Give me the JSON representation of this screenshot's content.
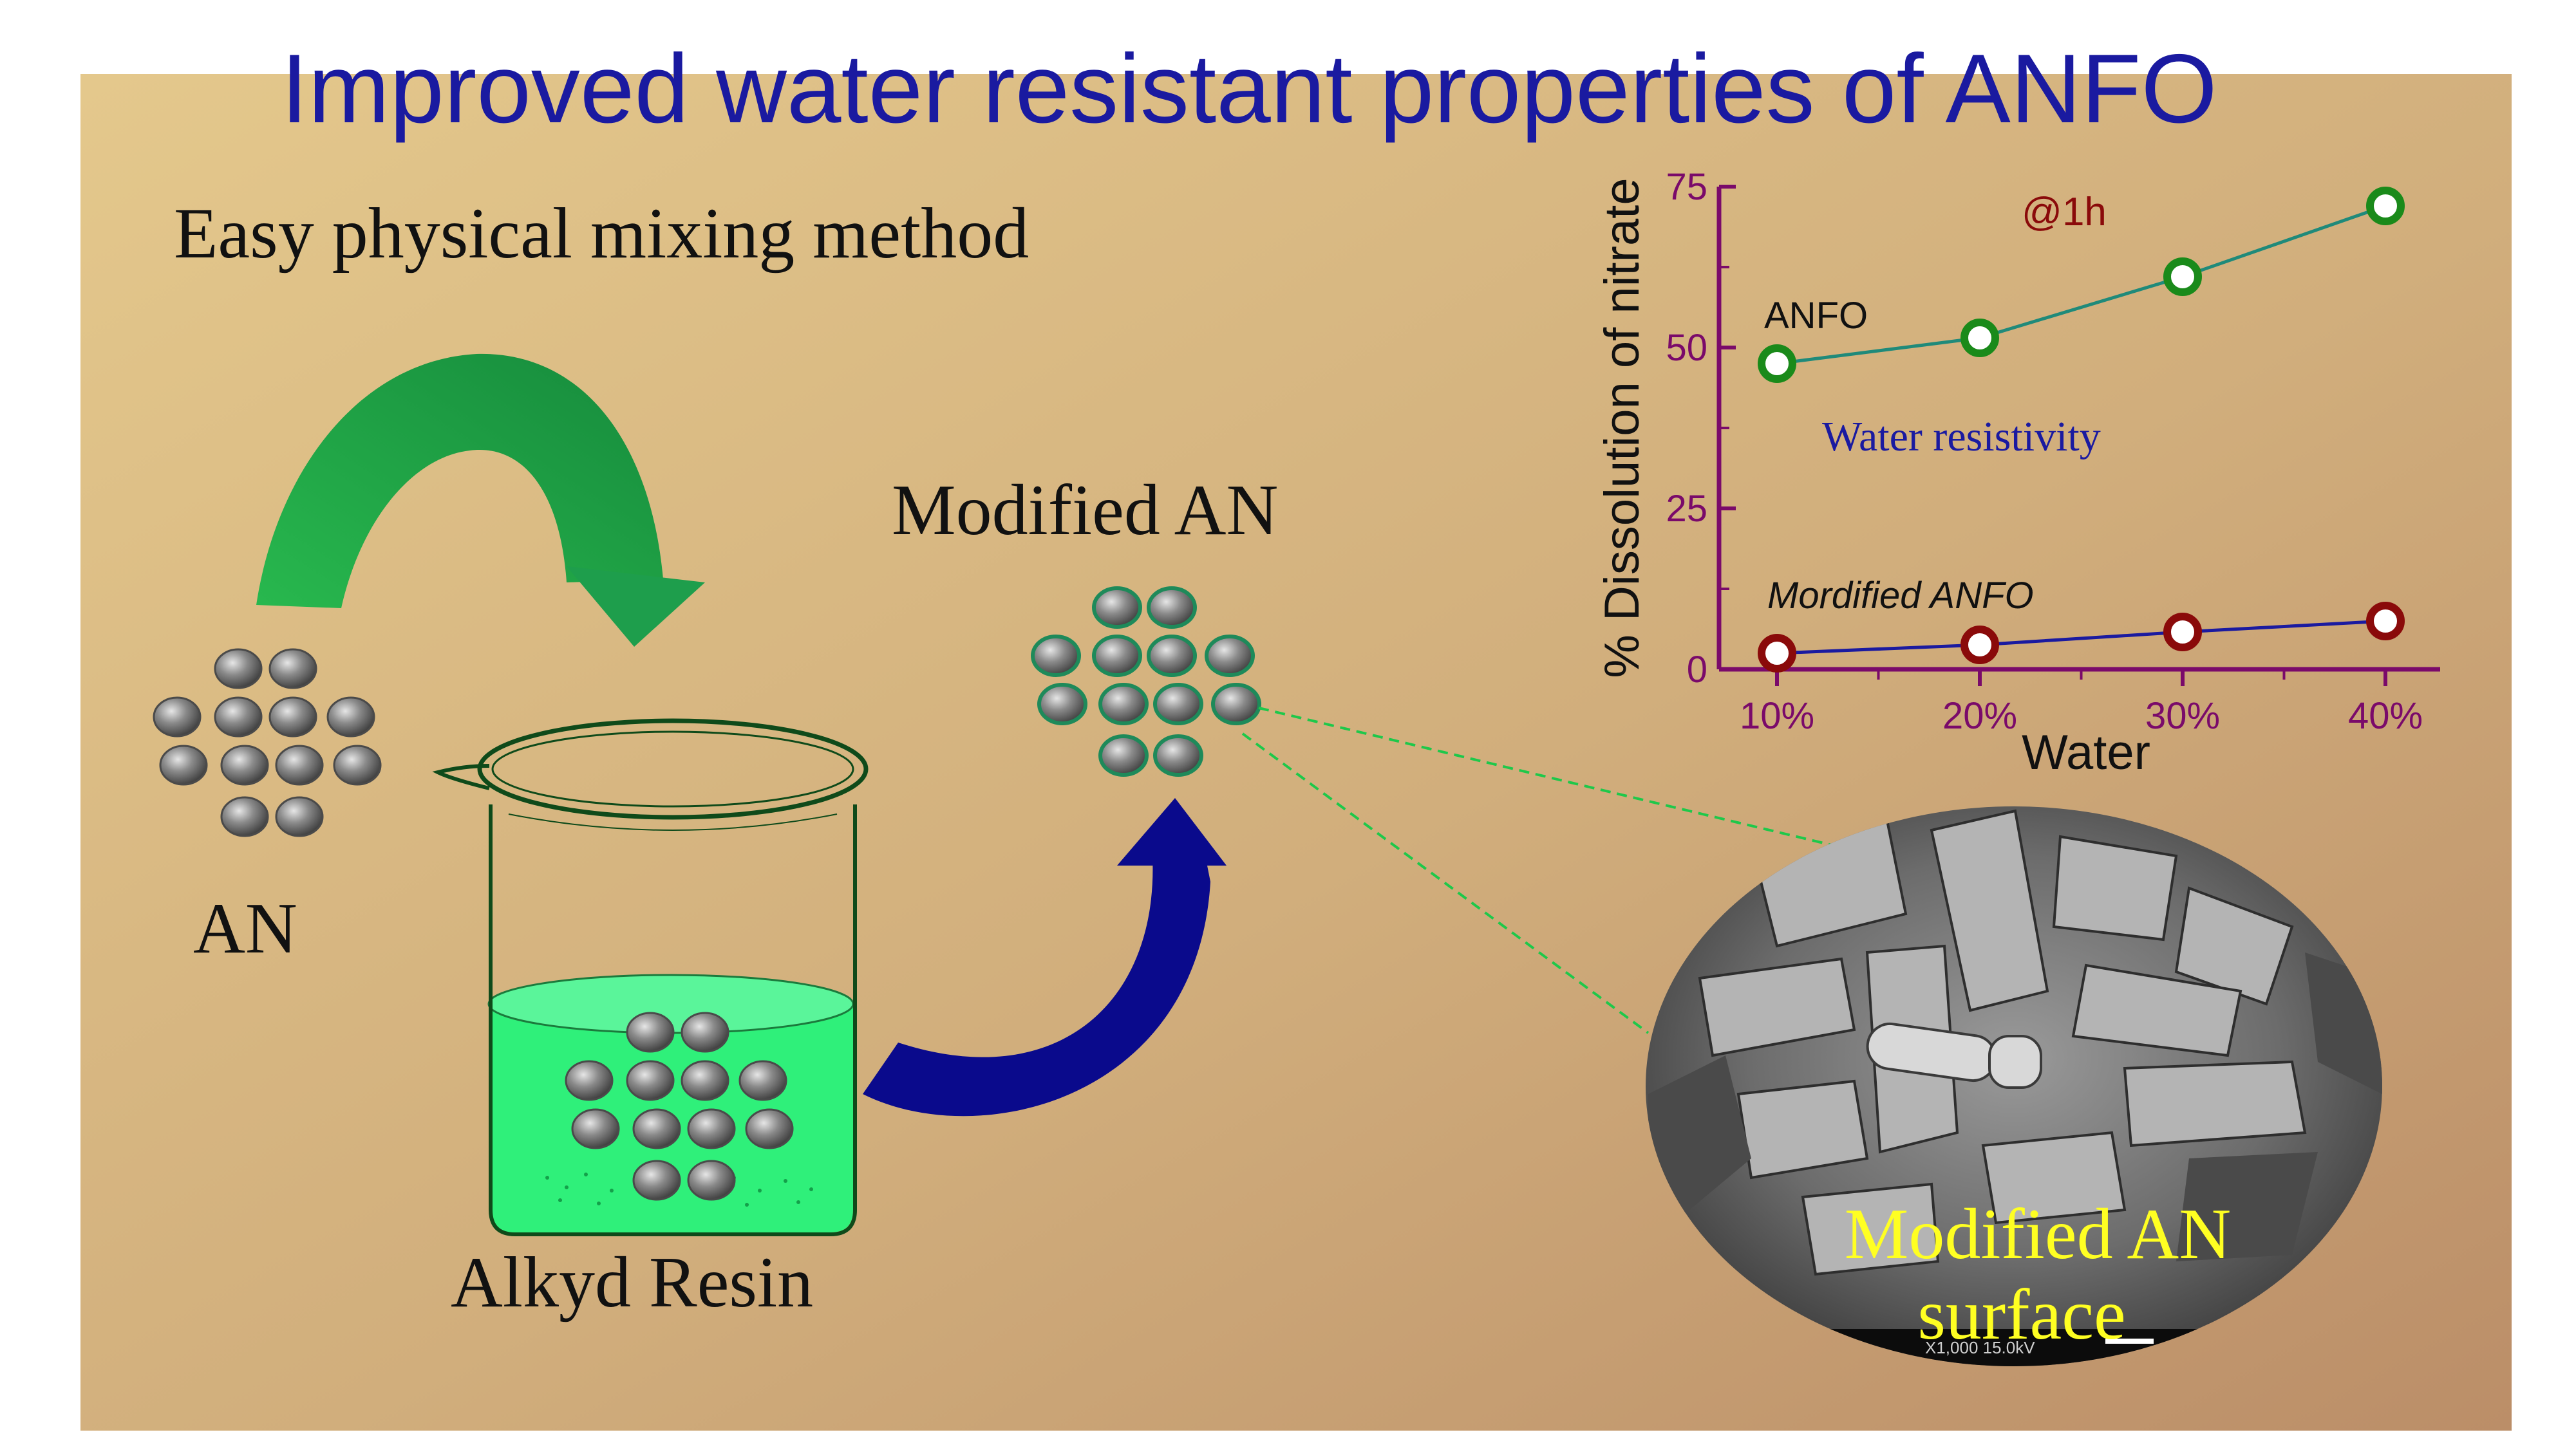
{
  "title": "Improved water resistant properties of ANFO",
  "subtitle": "Easy physical mixing method",
  "labels": {
    "an": "AN",
    "alkyd_resin": "Alkyd Resin",
    "modified_an": "Modified AN",
    "sem_caption_line1": "Modified AN",
    "sem_caption_line2": "surface",
    "sem_scale_text": "X1,000    15.0kV"
  },
  "colors": {
    "title": "#1a1aa0",
    "green_arrow": "#1e9e4c",
    "blue_arrow": "#0a0a8c",
    "resin": "#2ff07a",
    "axis": "#7a0a6a",
    "anfo_series": "#1f8a7a",
    "anfo_marker": "#1a8a1a",
    "modified_series": "#1a1aa0",
    "modified_marker": "#8a0a0a",
    "caption": "#ffff22"
  },
  "chart_data": {
    "type": "line",
    "title": "",
    "annotation": "@1h",
    "xlabel": "Water",
    "ylabel": "% Dissolution of nitrate",
    "categories": [
      "10%",
      "20%",
      "30%",
      "40%"
    ],
    "ylim": [
      0,
      75
    ],
    "yticks": [
      "0",
      "25",
      "50",
      "75"
    ],
    "grid": false,
    "series": [
      {
        "name": "ANFO",
        "values": [
          47.5,
          51.5,
          61,
          72
        ]
      },
      {
        "name": "Mordified ANFO",
        "values": [
          2.5,
          3.8,
          5.8,
          7.5
        ]
      }
    ],
    "inner_label": "Water resistivity"
  }
}
